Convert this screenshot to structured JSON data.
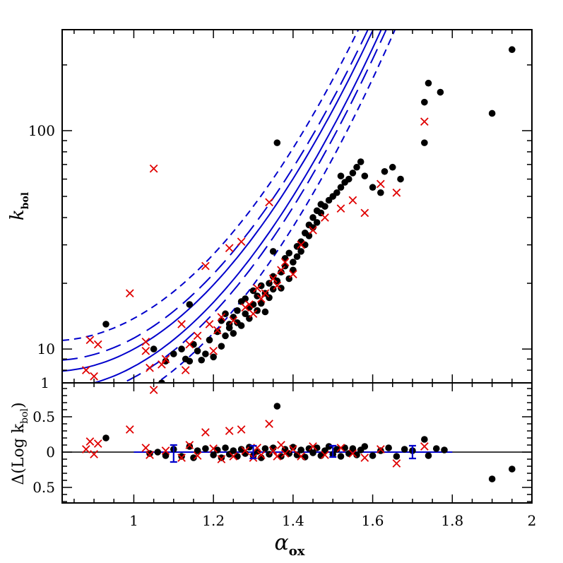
{
  "chart_data": {
    "type": "scatter",
    "colors": {
      "dots": "#000000",
      "crosses": "#e00000",
      "curves": "#0000cc",
      "frame": "#000000"
    },
    "xlim": [
      0.82,
      2.0
    ],
    "top_panel": {
      "ylabel_main": "k",
      "ylabel_sub": "bol",
      "yscale": "log",
      "ylim": [
        7.0,
        290.0
      ],
      "yticks": [
        {
          "value": 10,
          "label": "10"
        },
        {
          "value": 100,
          "label": "100"
        }
      ],
      "corner_label": "1",
      "curves": [
        {
          "style": "solid",
          "offset": 0.0
        },
        {
          "style": "solid",
          "offset": 0.0
        },
        {
          "style": "long-dashed",
          "offset": 0.09
        },
        {
          "style": "long-dashed",
          "offset": -0.09
        },
        {
          "style": "dashed",
          "offset": 0.18
        },
        {
          "style": "dashed",
          "offset": -0.18
        }
      ],
      "dots": [
        [
          0.93,
          13.0
        ],
        [
          1.05,
          10.0
        ],
        [
          1.07,
          7.0
        ],
        [
          1.08,
          8.8
        ],
        [
          1.1,
          9.5
        ],
        [
          1.12,
          10.0
        ],
        [
          1.13,
          9.0
        ],
        [
          1.14,
          8.8
        ],
        [
          1.14,
          16.0
        ],
        [
          1.15,
          10.5
        ],
        [
          1.16,
          9.8
        ],
        [
          1.17,
          8.9
        ],
        [
          1.18,
          9.5
        ],
        [
          1.19,
          11.0
        ],
        [
          1.2,
          9.2
        ],
        [
          1.21,
          12.0
        ],
        [
          1.22,
          13.5
        ],
        [
          1.22,
          10.3
        ],
        [
          1.23,
          11.5
        ],
        [
          1.23,
          14.5
        ],
        [
          1.24,
          12.5
        ],
        [
          1.24,
          13.0
        ],
        [
          1.25,
          14.0
        ],
        [
          1.25,
          11.8
        ],
        [
          1.26,
          13.2
        ],
        [
          1.26,
          15.0
        ],
        [
          1.27,
          12.8
        ],
        [
          1.27,
          16.5
        ],
        [
          1.28,
          14.5
        ],
        [
          1.28,
          17.0
        ],
        [
          1.29,
          15.5
        ],
        [
          1.29,
          13.8
        ],
        [
          1.3,
          16.0
        ],
        [
          1.3,
          18.5
        ],
        [
          1.31,
          15.0
        ],
        [
          1.31,
          17.5
        ],
        [
          1.32,
          16.2
        ],
        [
          1.32,
          19.5
        ],
        [
          1.33,
          18.0
        ],
        [
          1.33,
          14.8
        ],
        [
          1.34,
          20.0
        ],
        [
          1.34,
          17.2
        ],
        [
          1.35,
          21.5
        ],
        [
          1.35,
          18.8
        ],
        [
          1.35,
          28.0
        ],
        [
          1.36,
          88.0
        ],
        [
          1.36,
          20.5
        ],
        [
          1.37,
          22.5
        ],
        [
          1.37,
          19.0
        ],
        [
          1.38,
          24.0
        ],
        [
          1.38,
          26.0
        ],
        [
          1.39,
          21.0
        ],
        [
          1.39,
          27.5
        ],
        [
          1.4,
          25.0
        ],
        [
          1.4,
          23.0
        ],
        [
          1.41,
          29.5
        ],
        [
          1.41,
          26.5
        ],
        [
          1.42,
          28.0
        ],
        [
          1.42,
          31.0
        ],
        [
          1.43,
          30.0
        ],
        [
          1.43,
          34.0
        ],
        [
          1.44,
          33.0
        ],
        [
          1.44,
          37.0
        ],
        [
          1.45,
          36.0
        ],
        [
          1.45,
          40.0
        ],
        [
          1.46,
          38.0
        ],
        [
          1.46,
          43.0
        ],
        [
          1.47,
          42.0
        ],
        [
          1.47,
          46.0
        ],
        [
          1.48,
          45.0
        ],
        [
          1.49,
          48.0
        ],
        [
          1.5,
          50.0
        ],
        [
          1.51,
          52.0
        ],
        [
          1.52,
          55.0
        ],
        [
          1.52,
          62.0
        ],
        [
          1.53,
          58.0
        ],
        [
          1.54,
          60.0
        ],
        [
          1.55,
          64.0
        ],
        [
          1.56,
          68.0
        ],
        [
          1.57,
          72.0
        ],
        [
          1.58,
          62.0
        ],
        [
          1.6,
          55.0
        ],
        [
          1.62,
          52.0
        ],
        [
          1.63,
          65.0
        ],
        [
          1.65,
          68.0
        ],
        [
          1.67,
          60.0
        ],
        [
          1.73,
          88.0
        ],
        [
          1.73,
          135.0
        ],
        [
          1.74,
          165.0
        ],
        [
          1.77,
          150.0
        ],
        [
          1.9,
          120.0
        ],
        [
          1.95,
          235.0
        ]
      ],
      "crosses": [
        [
          0.88,
          8.0
        ],
        [
          0.89,
          11.0
        ],
        [
          0.9,
          7.5
        ],
        [
          0.91,
          10.5
        ],
        [
          0.99,
          18.0
        ],
        [
          1.03,
          10.8
        ],
        [
          1.03,
          9.8
        ],
        [
          1.04,
          8.2
        ],
        [
          1.05,
          67.0
        ],
        [
          1.07,
          8.5
        ],
        [
          1.08,
          9.0
        ],
        [
          1.12,
          13.0
        ],
        [
          1.13,
          8.0
        ],
        [
          1.14,
          10.5
        ],
        [
          1.16,
          11.5
        ],
        [
          1.18,
          24.0
        ],
        [
          1.19,
          13.0
        ],
        [
          1.2,
          9.8
        ],
        [
          1.21,
          12.2
        ],
        [
          1.22,
          14.0
        ],
        [
          1.24,
          29.0
        ],
        [
          1.25,
          13.5
        ],
        [
          1.27,
          31.0
        ],
        [
          1.28,
          15.5
        ],
        [
          1.29,
          16.0
        ],
        [
          1.3,
          14.5
        ],
        [
          1.31,
          19.0
        ],
        [
          1.32,
          17.0
        ],
        [
          1.33,
          18.0
        ],
        [
          1.34,
          47.0
        ],
        [
          1.35,
          21.0
        ],
        [
          1.36,
          19.5
        ],
        [
          1.37,
          23.0
        ],
        [
          1.38,
          25.0
        ],
        [
          1.4,
          22.0
        ],
        [
          1.42,
          30.0
        ],
        [
          1.45,
          35.0
        ],
        [
          1.48,
          40.0
        ],
        [
          1.52,
          44.0
        ],
        [
          1.55,
          48.0
        ],
        [
          1.58,
          42.0
        ],
        [
          1.62,
          57.0
        ],
        [
          1.66,
          52.0
        ],
        [
          1.73,
          110.0
        ]
      ]
    },
    "bottom_panel": {
      "ylabel": "Δ(Log k",
      "ylabel_sub": "bol",
      "ylabel_close": ")",
      "ylim": [
        -0.72,
        0.98
      ],
      "yticks": [
        {
          "value": 0.5,
          "label": "0.5"
        },
        {
          "value": 0.0,
          "label": "0"
        },
        {
          "value": -0.5,
          "label": "0.5"
        }
      ],
      "errorbars": [
        {
          "x": 1.1,
          "y": -0.02,
          "err": 0.12
        },
        {
          "x": 1.3,
          "y": 0.0,
          "err": 0.09
        },
        {
          "x": 1.5,
          "y": 0.01,
          "err": 0.08
        },
        {
          "x": 1.7,
          "y": 0.0,
          "err": 0.09
        }
      ],
      "dots": [
        [
          0.93,
          0.2
        ],
        [
          1.04,
          -0.02
        ],
        [
          1.06,
          0.0
        ],
        [
          1.08,
          -0.05
        ],
        [
          1.1,
          0.04
        ],
        [
          1.12,
          -0.06
        ],
        [
          1.14,
          0.08
        ],
        [
          1.15,
          -0.08
        ],
        [
          1.16,
          0.02
        ],
        [
          1.18,
          0.05
        ],
        [
          1.2,
          -0.04
        ],
        [
          1.21,
          0.03
        ],
        [
          1.22,
          -0.08
        ],
        [
          1.23,
          0.06
        ],
        [
          1.24,
          -0.03
        ],
        [
          1.25,
          0.02
        ],
        [
          1.26,
          -0.06
        ],
        [
          1.27,
          0.04
        ],
        [
          1.28,
          -0.02
        ],
        [
          1.29,
          0.07
        ],
        [
          1.3,
          -0.05
        ],
        [
          1.31,
          0.01
        ],
        [
          1.32,
          -0.08
        ],
        [
          1.33,
          0.05
        ],
        [
          1.34,
          -0.03
        ],
        [
          1.35,
          0.06
        ],
        [
          1.36,
          0.65
        ],
        [
          1.37,
          -0.06
        ],
        [
          1.38,
          0.04
        ],
        [
          1.39,
          -0.02
        ],
        [
          1.4,
          0.07
        ],
        [
          1.41,
          -0.04
        ],
        [
          1.42,
          0.03
        ],
        [
          1.43,
          -0.07
        ],
        [
          1.44,
          0.05
        ],
        [
          1.45,
          -0.01
        ],
        [
          1.46,
          0.06
        ],
        [
          1.47,
          -0.05
        ],
        [
          1.48,
          0.02
        ],
        [
          1.49,
          0.08
        ],
        [
          1.5,
          -0.03
        ],
        [
          1.51,
          0.04
        ],
        [
          1.52,
          -0.06
        ],
        [
          1.53,
          0.06
        ],
        [
          1.54,
          -0.02
        ],
        [
          1.55,
          0.05
        ],
        [
          1.56,
          -0.04
        ],
        [
          1.57,
          0.03
        ],
        [
          1.58,
          0.08
        ],
        [
          1.6,
          -0.05
        ],
        [
          1.62,
          0.02
        ],
        [
          1.64,
          0.06
        ],
        [
          1.66,
          -0.06
        ],
        [
          1.68,
          0.04
        ],
        [
          1.7,
          0.02
        ],
        [
          1.73,
          0.18
        ],
        [
          1.74,
          -0.05
        ],
        [
          1.76,
          0.05
        ],
        [
          1.78,
          0.03
        ],
        [
          1.9,
          -0.38
        ],
        [
          1.95,
          -0.24
        ]
      ],
      "crosses": [
        [
          0.88,
          0.04
        ],
        [
          0.89,
          0.15
        ],
        [
          0.9,
          -0.03
        ],
        [
          0.91,
          0.12
        ],
        [
          0.99,
          0.32
        ],
        [
          1.03,
          0.06
        ],
        [
          1.04,
          -0.04
        ],
        [
          1.05,
          0.88
        ],
        [
          1.08,
          0.02
        ],
        [
          1.12,
          -0.08
        ],
        [
          1.14,
          0.1
        ],
        [
          1.16,
          -0.05
        ],
        [
          1.18,
          0.28
        ],
        [
          1.2,
          0.05
        ],
        [
          1.22,
          -0.1
        ],
        [
          1.24,
          0.3
        ],
        [
          1.25,
          -0.06
        ],
        [
          1.27,
          0.32
        ],
        [
          1.28,
          0.02
        ],
        [
          1.3,
          -0.08
        ],
        [
          1.31,
          0.06
        ],
        [
          1.32,
          -0.04
        ],
        [
          1.34,
          0.4
        ],
        [
          1.35,
          0.02
        ],
        [
          1.36,
          -0.06
        ],
        [
          1.37,
          0.1
        ],
        [
          1.38,
          -0.02
        ],
        [
          1.4,
          0.04
        ],
        [
          1.42,
          -0.06
        ],
        [
          1.45,
          0.08
        ],
        [
          1.48,
          -0.04
        ],
        [
          1.52,
          0.06
        ],
        [
          1.55,
          -0.02
        ],
        [
          1.58,
          -0.08
        ],
        [
          1.62,
          0.04
        ],
        [
          1.66,
          -0.16
        ],
        [
          1.73,
          0.08
        ]
      ]
    },
    "xaxis": {
      "label_main": "α",
      "label_sub": "ox",
      "ticks": [
        {
          "value": 1.0,
          "label": "1"
        },
        {
          "value": 1.2,
          "label": "1.2"
        },
        {
          "value": 1.4,
          "label": "1.4"
        },
        {
          "value": 1.6,
          "label": "1.6"
        },
        {
          "value": 1.8,
          "label": "1.8"
        },
        {
          "value": 2.0,
          "label": "2"
        }
      ]
    }
  }
}
